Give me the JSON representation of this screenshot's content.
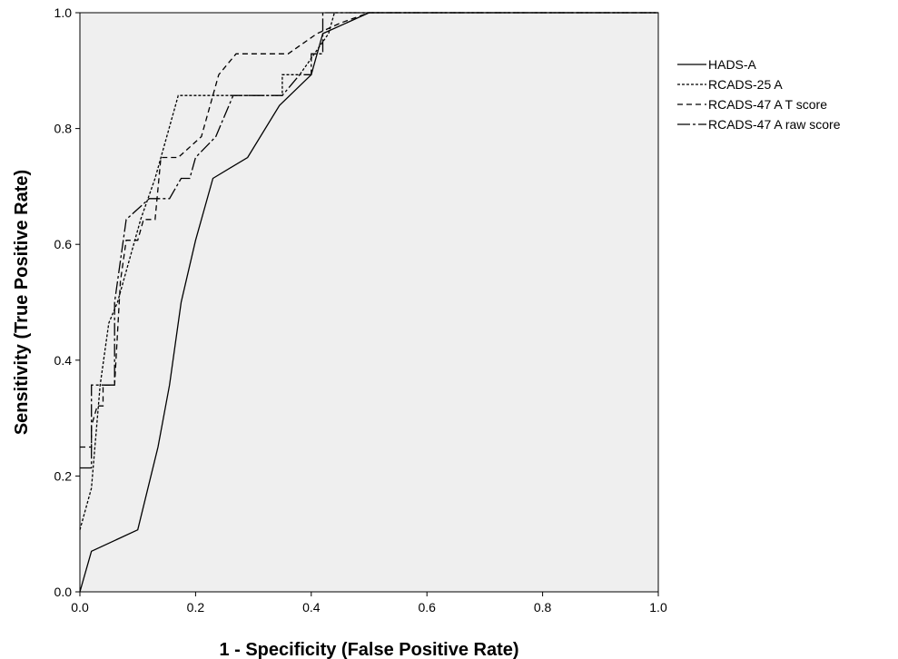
{
  "chart_data": {
    "type": "line",
    "xlabel": "1 - Specificity (False Positive Rate)",
    "ylabel": "Sensitivity (True Positive Rate)",
    "xlim": [
      0.0,
      1.0
    ],
    "ylim": [
      0.0,
      1.0
    ],
    "xticks": [
      "0.0",
      "0.2",
      "0.4",
      "0.6",
      "0.8",
      "1.0"
    ],
    "yticks": [
      "0.0",
      "0.2",
      "0.4",
      "0.6",
      "0.8",
      "1.0"
    ],
    "grid": false,
    "legend_position": "right",
    "background": "#efefef",
    "line_color": "#000000",
    "series": [
      {
        "name": "HADS-A",
        "style": "solid",
        "points": [
          [
            0,
            0
          ],
          [
            0.02,
            0.07
          ],
          [
            0.1,
            0.107
          ],
          [
            0.135,
            0.25
          ],
          [
            0.155,
            0.357
          ],
          [
            0.175,
            0.5
          ],
          [
            0.2,
            0.607
          ],
          [
            0.23,
            0.714
          ],
          [
            0.29,
            0.75
          ],
          [
            0.345,
            0.84
          ],
          [
            0.4,
            0.893
          ],
          [
            0.42,
            0.964
          ],
          [
            0.5,
            1.0
          ],
          [
            1.0,
            1.0
          ]
        ]
      },
      {
        "name": "RCADS-25 A",
        "style": "dashed-short",
        "points": [
          [
            0,
            0.107
          ],
          [
            0.02,
            0.179
          ],
          [
            0.035,
            0.357
          ],
          [
            0.05,
            0.464
          ],
          [
            0.065,
            0.5
          ],
          [
            0.085,
            0.571
          ],
          [
            0.105,
            0.643
          ],
          [
            0.13,
            0.714
          ],
          [
            0.16,
            0.821
          ],
          [
            0.17,
            0.857
          ],
          [
            0.225,
            0.857
          ],
          [
            0.35,
            0.857
          ],
          [
            0.35,
            0.893
          ],
          [
            0.38,
            0.893
          ],
          [
            0.43,
            0.964
          ],
          [
            0.44,
            1.0
          ],
          [
            1.0,
            1.0
          ]
        ]
      },
      {
        "name": "RCADS-47 A T score",
        "style": "dashed-long",
        "points": [
          [
            0,
            0.25
          ],
          [
            0.02,
            0.25
          ],
          [
            0.02,
            0.286
          ],
          [
            0.03,
            0.321
          ],
          [
            0.04,
            0.321
          ],
          [
            0.04,
            0.357
          ],
          [
            0.06,
            0.357
          ],
          [
            0.07,
            0.536
          ],
          [
            0.08,
            0.607
          ],
          [
            0.1,
            0.607
          ],
          [
            0.11,
            0.643
          ],
          [
            0.13,
            0.643
          ],
          [
            0.14,
            0.75
          ],
          [
            0.15,
            0.75
          ],
          [
            0.17,
            0.75
          ],
          [
            0.21,
            0.786
          ],
          [
            0.24,
            0.893
          ],
          [
            0.27,
            0.929
          ],
          [
            0.36,
            0.929
          ],
          [
            0.41,
            0.964
          ],
          [
            0.45,
            0.982
          ],
          [
            0.5,
            1.0
          ],
          [
            1.0,
            1.0
          ]
        ]
      },
      {
        "name": "RCADS-47 A raw score",
        "style": "dash-long-short",
        "points": [
          [
            0,
            0.214
          ],
          [
            0.02,
            0.214
          ],
          [
            0.02,
            0.357
          ],
          [
            0.06,
            0.357
          ],
          [
            0.06,
            0.5
          ],
          [
            0.08,
            0.643
          ],
          [
            0.12,
            0.679
          ],
          [
            0.155,
            0.679
          ],
          [
            0.175,
            0.714
          ],
          [
            0.19,
            0.714
          ],
          [
            0.2,
            0.75
          ],
          [
            0.235,
            0.786
          ],
          [
            0.265,
            0.857
          ],
          [
            0.35,
            0.857
          ],
          [
            0.38,
            0.893
          ],
          [
            0.4,
            0.893
          ],
          [
            0.4,
            0.929
          ],
          [
            0.42,
            0.929
          ],
          [
            0.42,
            1.0
          ],
          [
            1.0,
            1.0
          ]
        ]
      }
    ]
  }
}
